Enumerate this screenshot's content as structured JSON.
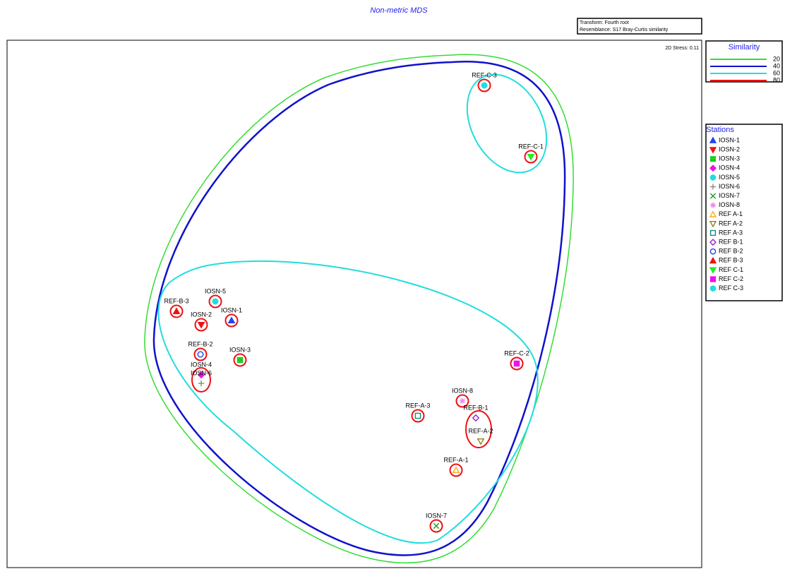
{
  "title": "Non-metric MDS",
  "info_box": [
    "Transform: Fourth root",
    "Resemblance: S17 Bray-Curtis similarity"
  ],
  "stress": "2D Stress: 0.11",
  "similarity_legend": {
    "title": "Similarity",
    "levels": [
      {
        "value": 20,
        "color": "#33dd33"
      },
      {
        "value": 40,
        "color": "#1111cc"
      },
      {
        "value": 60,
        "color": "#22dddd"
      },
      {
        "value": 80,
        "color": "#ee1111"
      }
    ]
  },
  "stations_legend": {
    "title": "Stations",
    "items": [
      {
        "name": "IOSN-1",
        "color": "#2244ee",
        "symbol": "triangle-up",
        "filled": true
      },
      {
        "name": "IOSN-2",
        "color": "#ee1111",
        "symbol": "triangle-down",
        "filled": true
      },
      {
        "name": "IOSN-3",
        "color": "#22cc22",
        "symbol": "square",
        "filled": true
      },
      {
        "name": "IOSN-4",
        "color": "#ee11ee",
        "symbol": "diamond",
        "filled": true
      },
      {
        "name": "IOSN-5",
        "color": "#22dddd",
        "symbol": "circle",
        "filled": true
      },
      {
        "name": "IOSN-6",
        "color": "#888888",
        "symbol": "plus",
        "filled": false
      },
      {
        "name": "IOSN-7",
        "color": "#229922",
        "symbol": "cross",
        "filled": false
      },
      {
        "name": "IOSN-8",
        "color": "#ee88ee",
        "symbol": "asterisk",
        "filled": false
      },
      {
        "name": "REF A-1",
        "color": "#ffaa22",
        "symbol": "triangle-up",
        "filled": false
      },
      {
        "name": "REF A-2",
        "color": "#888822",
        "symbol": "triangle-down",
        "filled": false
      },
      {
        "name": "REF A-3",
        "color": "#118888",
        "symbol": "square",
        "filled": false
      },
      {
        "name": "REF B-1",
        "color": "#9922cc",
        "symbol": "diamond",
        "filled": false
      },
      {
        "name": "REF B-2",
        "color": "#2244ee",
        "symbol": "circle",
        "filled": false
      },
      {
        "name": "REF B-3",
        "color": "#ee1111",
        "symbol": "triangle-up",
        "filled": true
      },
      {
        "name": "REF C-1",
        "color": "#22ee22",
        "symbol": "triangle-down",
        "filled": true
      },
      {
        "name": "REF C-2",
        "color": "#ee11ee",
        "symbol": "square",
        "filled": true
      },
      {
        "name": "REF C-3",
        "color": "#22dddd",
        "symbol": "circle",
        "filled": true
      }
    ]
  },
  "points": [
    {
      "label": "REF-C-3",
      "station": 16
    },
    {
      "label": "REF-C-1",
      "station": 14
    },
    {
      "label": "REF-B-3",
      "station": 13
    },
    {
      "label": "IOSN-5",
      "station": 4
    },
    {
      "label": "IOSN-2",
      "station": 1
    },
    {
      "label": "IOSN-1",
      "station": 0
    },
    {
      "label": "REF-B-2",
      "station": 12
    },
    {
      "label": "IOSN-3",
      "station": 2
    },
    {
      "label": "IOSN-4",
      "station": 3
    },
    {
      "label": "IOSN-6",
      "station": 5
    },
    {
      "label": "REF-C-2",
      "station": 15
    },
    {
      "label": "IOSN-8",
      "station": 7
    },
    {
      "label": "REF-A-3",
      "station": 10
    },
    {
      "label": "REF-B-1",
      "station": 11
    },
    {
      "label": "REF-A-2",
      "station": 9
    },
    {
      "label": "REF-A-1",
      "station": 8
    },
    {
      "label": "IOSN-7",
      "station": 6
    }
  ]
}
